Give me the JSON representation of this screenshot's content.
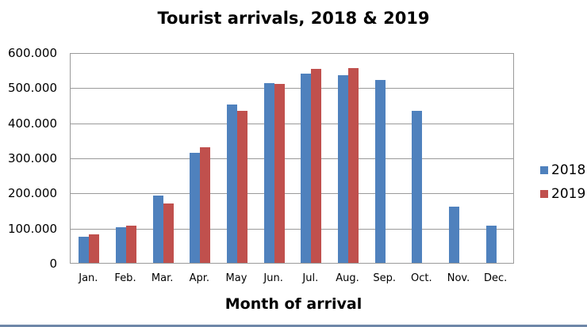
{
  "chart_data": {
    "type": "bar",
    "title": "Tourist arrivals, 2018 & 2019",
    "xlabel": "Month of arrival",
    "ylabel": "",
    "ylim": [
      0,
      600000
    ],
    "yticks": [
      "0",
      "100.000",
      "200.000",
      "300.000",
      "400.000",
      "500.000",
      "600.000"
    ],
    "grid": true,
    "legend_position": "right",
    "categories": [
      "Jan.",
      "Feb.",
      "Mar.",
      "Apr.",
      "May",
      "Jun.",
      "Jul.",
      "Aug.",
      "Sep.",
      "Oct.",
      "Nov.",
      "Dec."
    ],
    "series": [
      {
        "name": "2018",
        "color": "#4f81bd",
        "values": [
          75000,
          102000,
          192000,
          314000,
          451000,
          512000,
          540000,
          535000,
          520000,
          433000,
          160000,
          106000
        ]
      },
      {
        "name": "2019",
        "color": "#c0504d",
        "values": [
          81000,
          106000,
          169000,
          329000,
          433000,
          510000,
          552000,
          554000,
          null,
          null,
          null,
          null
        ]
      }
    ]
  },
  "colors": {
    "gridline": "#9a9a9a",
    "bottom_border": "#6e87a8"
  }
}
